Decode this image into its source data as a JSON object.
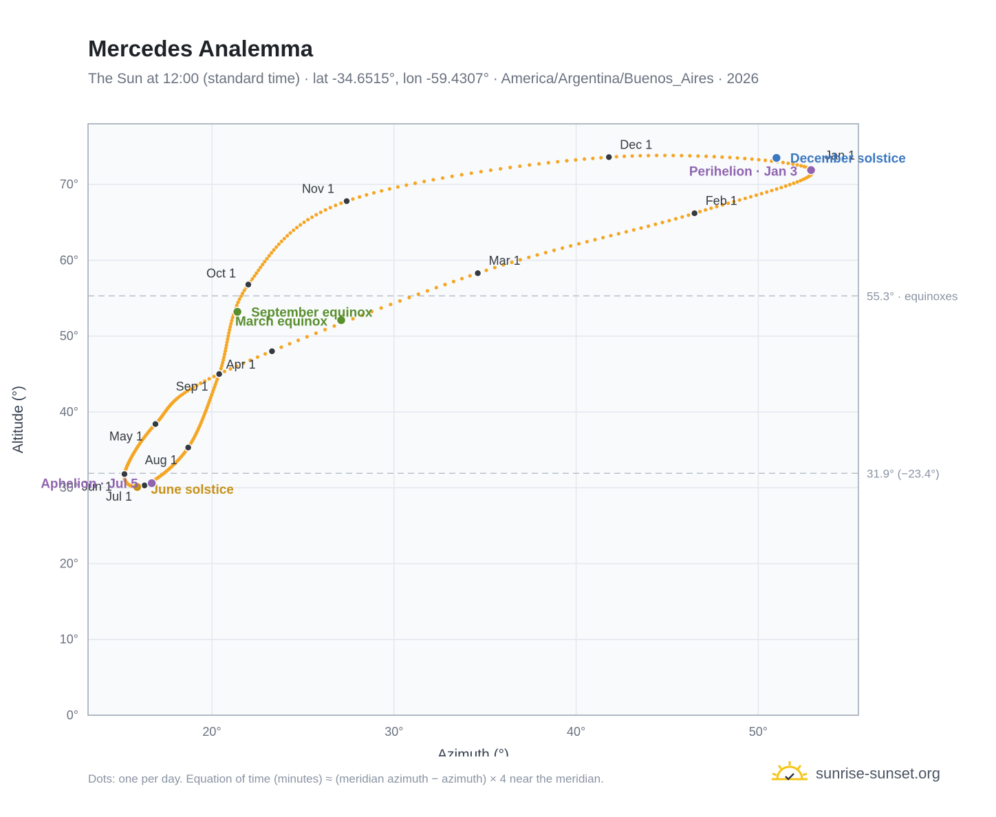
{
  "header": {
    "title": "Mercedes Analemma",
    "subtitle": "The Sun at 12:00 (standard time) · lat -34.6515°, lon -59.4307° · America/Argentina/Buenos_Aires · 2026"
  },
  "footer": {
    "note": "Dots: one per day. Equation of time (minutes) ≈ (meridian azimuth − azimuth) × 4 near the meridian.",
    "brand": "sunrise-sunset.org"
  },
  "colors": {
    "path": "#f5a623",
    "month_marker": "#343a40",
    "equinox": "#5a8f2e",
    "june_solstice": "#c8921a",
    "december_solstice": "#3b78c2",
    "apsis": "#9065b0",
    "reference_line": "#b8c0c8",
    "plot_background": "#f8fafc",
    "grid": "#e3e8ee",
    "frame": "#9aa5b4"
  },
  "chart_data": {
    "type": "scatter",
    "title": "Mercedes Analemma",
    "xlabel": "Azimuth (°)",
    "ylabel": "Altitude (°)",
    "xlim": [
      13.2,
      55.5
    ],
    "ylim": [
      0,
      78
    ],
    "x_ticks": [
      20,
      30,
      40,
      50
    ],
    "x_tick_labels": [
      "20°",
      "30°",
      "40°",
      "50°"
    ],
    "y_ticks": [
      0,
      10,
      20,
      30,
      40,
      50,
      60,
      70
    ],
    "y_tick_labels": [
      "0°",
      "10°",
      "20°",
      "30°",
      "40°",
      "50°",
      "60°",
      "70°"
    ],
    "grid": true,
    "path_order": [
      "Jan 1",
      "Feb 1",
      "Mar 1",
      "Apr 1",
      "May 1",
      "Jun 1",
      "Jul 1",
      "Aug 1",
      "Sep 1",
      "Oct 1",
      "Nov 1",
      "Dec 1"
    ],
    "month_markers": [
      {
        "label": "Jan 1",
        "x": 52.9,
        "y": 72.0,
        "days_in_month": 31
      },
      {
        "label": "Feb 1",
        "x": 46.5,
        "y": 66.2,
        "days_in_month": 28
      },
      {
        "label": "Mar 1",
        "x": 34.6,
        "y": 58.3,
        "days_in_month": 31
      },
      {
        "label": "Apr 1",
        "x": 20.4,
        "y": 45.0,
        "days_in_month": 30
      },
      {
        "label": "May 1",
        "x": 16.9,
        "y": 38.4,
        "days_in_month": 31
      },
      {
        "label": "Jun 1",
        "x": 15.2,
        "y": 31.8,
        "days_in_month": 30
      },
      {
        "label": "Jul 1",
        "x": 16.3,
        "y": 30.3,
        "days_in_month": 31
      },
      {
        "label": "Aug 1",
        "x": 18.7,
        "y": 35.3,
        "days_in_month": 31
      },
      {
        "label": "Sep 1",
        "x": 20.4,
        "y": 45.0,
        "days_in_month": 30
      },
      {
        "label": "Oct 1",
        "x": 22.0,
        "y": 56.8,
        "days_in_month": 31
      },
      {
        "label": "Nov 1",
        "x": 27.4,
        "y": 67.8,
        "days_in_month": 30
      },
      {
        "label": "Dec 1",
        "x": 41.8,
        "y": 73.6,
        "days_in_month": 31
      }
    ],
    "extra_points": [
      {
        "x": 23.3,
        "y": 48.0
      }
    ],
    "events": [
      {
        "label": "March equinox",
        "x": 27.1,
        "y": 52.1,
        "kind": "equinox"
      },
      {
        "label": "September equinox",
        "x": 21.4,
        "y": 53.2,
        "kind": "equinox"
      },
      {
        "label": "June solstice",
        "x": 15.9,
        "y": 30.1,
        "kind": "june_solstice"
      },
      {
        "label": "December solstice",
        "x": 51.0,
        "y": 73.5,
        "kind": "december_solstice"
      },
      {
        "label": "Perihelion · Jan 3",
        "x": 52.9,
        "y": 71.9,
        "kind": "apsis"
      },
      {
        "label": "Aphelion · Jul 5",
        "x": 16.7,
        "y": 30.6,
        "kind": "apsis"
      }
    ],
    "reference_lines": [
      {
        "y": 55.3,
        "label": "55.3° · equinoxes"
      },
      {
        "y": 31.9,
        "label": "31.9° (−23.4°)"
      }
    ]
  }
}
